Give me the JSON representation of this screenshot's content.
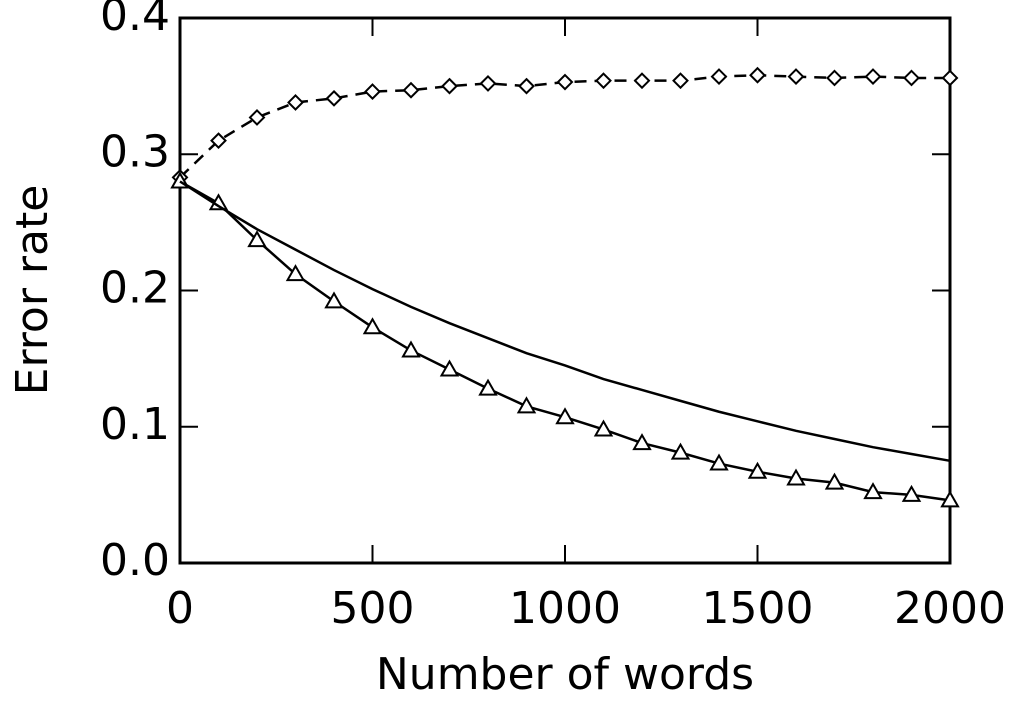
{
  "chart_data": {
    "type": "line",
    "xlabel": "Number of words",
    "ylabel": "Error rate",
    "x": [
      0,
      100,
      200,
      300,
      400,
      500,
      600,
      700,
      800,
      900,
      1000,
      1100,
      1200,
      1300,
      1400,
      1500,
      1600,
      1700,
      1800,
      1900,
      2000
    ],
    "series": [
      {
        "color": "#000000",
        "marker": "diamond",
        "dashed": true,
        "values": [
          0.283,
          0.31,
          0.327,
          0.338,
          0.341,
          0.346,
          0.347,
          0.35,
          0.352,
          0.35,
          0.353,
          0.354,
          0.354,
          0.354,
          0.357,
          0.358,
          0.357,
          0.356,
          0.357,
          0.356,
          0.356
        ]
      },
      {
        "color": "#000000",
        "marker": "triangle",
        "dashed": false,
        "values": [
          0.28,
          0.264,
          0.237,
          0.212,
          0.192,
          0.173,
          0.156,
          0.142,
          0.128,
          0.115,
          0.107,
          0.098,
          0.088,
          0.081,
          0.073,
          0.067,
          0.062,
          0.059,
          0.052,
          0.05,
          0.046
        ]
      },
      {
        "color": "#000000",
        "marker": "none",
        "dashed": false,
        "values": [
          0.28,
          0.262,
          0.245,
          0.23,
          0.215,
          0.201,
          0.188,
          0.176,
          0.165,
          0.154,
          0.145,
          0.135,
          0.127,
          0.119,
          0.111,
          0.104,
          0.097,
          0.091,
          0.085,
          0.08,
          0.075
        ]
      }
    ],
    "xlim": [
      0,
      2000
    ],
    "ylim": [
      0,
      0.4
    ],
    "xticks": [
      0,
      500,
      1000,
      1500,
      2000
    ],
    "yticks": [
      {
        "value": 0,
        "label": "0.0"
      },
      0.1,
      0.2,
      0.3,
      0.4
    ]
  }
}
